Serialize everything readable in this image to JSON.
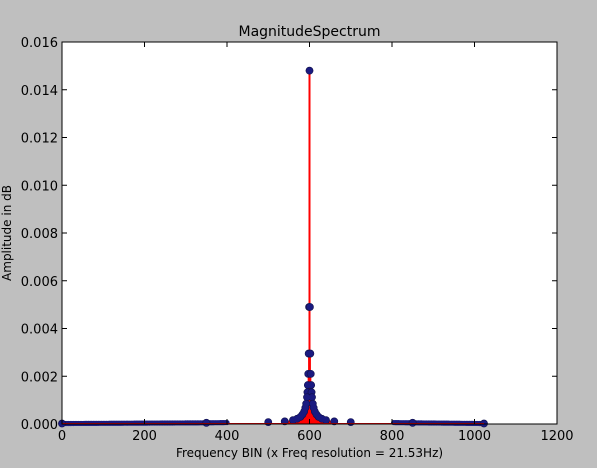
{
  "chart_data": {
    "type": "line",
    "title": "MagnitudeSpectrum",
    "xlabel": "Frequency BIN (x Freq resolution = 21.53Hz)",
    "ylabel": "Amplitude in dB",
    "xlim": [
      0,
      1200
    ],
    "ylim": [
      0,
      0.016
    ],
    "xticks": [
      "0",
      "200",
      "400",
      "600",
      "800",
      "1000",
      "1200"
    ],
    "yticks": [
      "0.000",
      "0.002",
      "0.004",
      "0.006",
      "0.008",
      "0.010",
      "0.012",
      "0.014",
      "0.016"
    ],
    "grid": false,
    "series": [
      {
        "style": "stem",
        "line_color": "#ff0000",
        "marker_color": "#1a1a80",
        "x_range": [
          0,
          1023
        ],
        "peak": {
          "x": 600,
          "y": 0.0148
        },
        "points": [
          {
            "x": 600,
            "y": 0.0148
          },
          {
            "x": 599,
            "y": 0.0049
          },
          {
            "x": 601,
            "y": 0.0049
          },
          {
            "x": 598,
            "y": 0.00295
          },
          {
            "x": 602,
            "y": 0.00295
          },
          {
            "x": 597,
            "y": 0.0021
          },
          {
            "x": 603,
            "y": 0.0021
          },
          {
            "x": 596,
            "y": 0.00163
          },
          {
            "x": 604,
            "y": 0.00163
          },
          {
            "x": 595,
            "y": 0.00133
          },
          {
            "x": 605,
            "y": 0.00133
          },
          {
            "x": 594,
            "y": 0.00112
          },
          {
            "x": 606,
            "y": 0.00112
          },
          {
            "x": 592,
            "y": 0.00085
          },
          {
            "x": 608,
            "y": 0.00085
          },
          {
            "x": 590,
            "y": 0.00068
          },
          {
            "x": 610,
            "y": 0.00068
          },
          {
            "x": 587,
            "y": 0.00052
          },
          {
            "x": 613,
            "y": 0.00052
          },
          {
            "x": 583,
            "y": 0.0004
          },
          {
            "x": 617,
            "y": 0.0004
          },
          {
            "x": 578,
            "y": 0.0003
          },
          {
            "x": 622,
            "y": 0.0003
          },
          {
            "x": 570,
            "y": 0.00022
          },
          {
            "x": 630,
            "y": 0.00022
          },
          {
            "x": 560,
            "y": 0.00016
          },
          {
            "x": 640,
            "y": 0.00016
          },
          {
            "x": 540,
            "y": 0.00011
          },
          {
            "x": 660,
            "y": 0.00011
          },
          {
            "x": 500,
            "y": 8e-05
          },
          {
            "x": 700,
            "y": 8e-05
          },
          {
            "x": 350,
            "y": 5e-05
          },
          {
            "x": 850,
            "y": 5e-05
          },
          {
            "x": 0,
            "y": 2e-05
          },
          {
            "x": 1023,
            "y": 2e-05
          }
        ]
      }
    ]
  }
}
